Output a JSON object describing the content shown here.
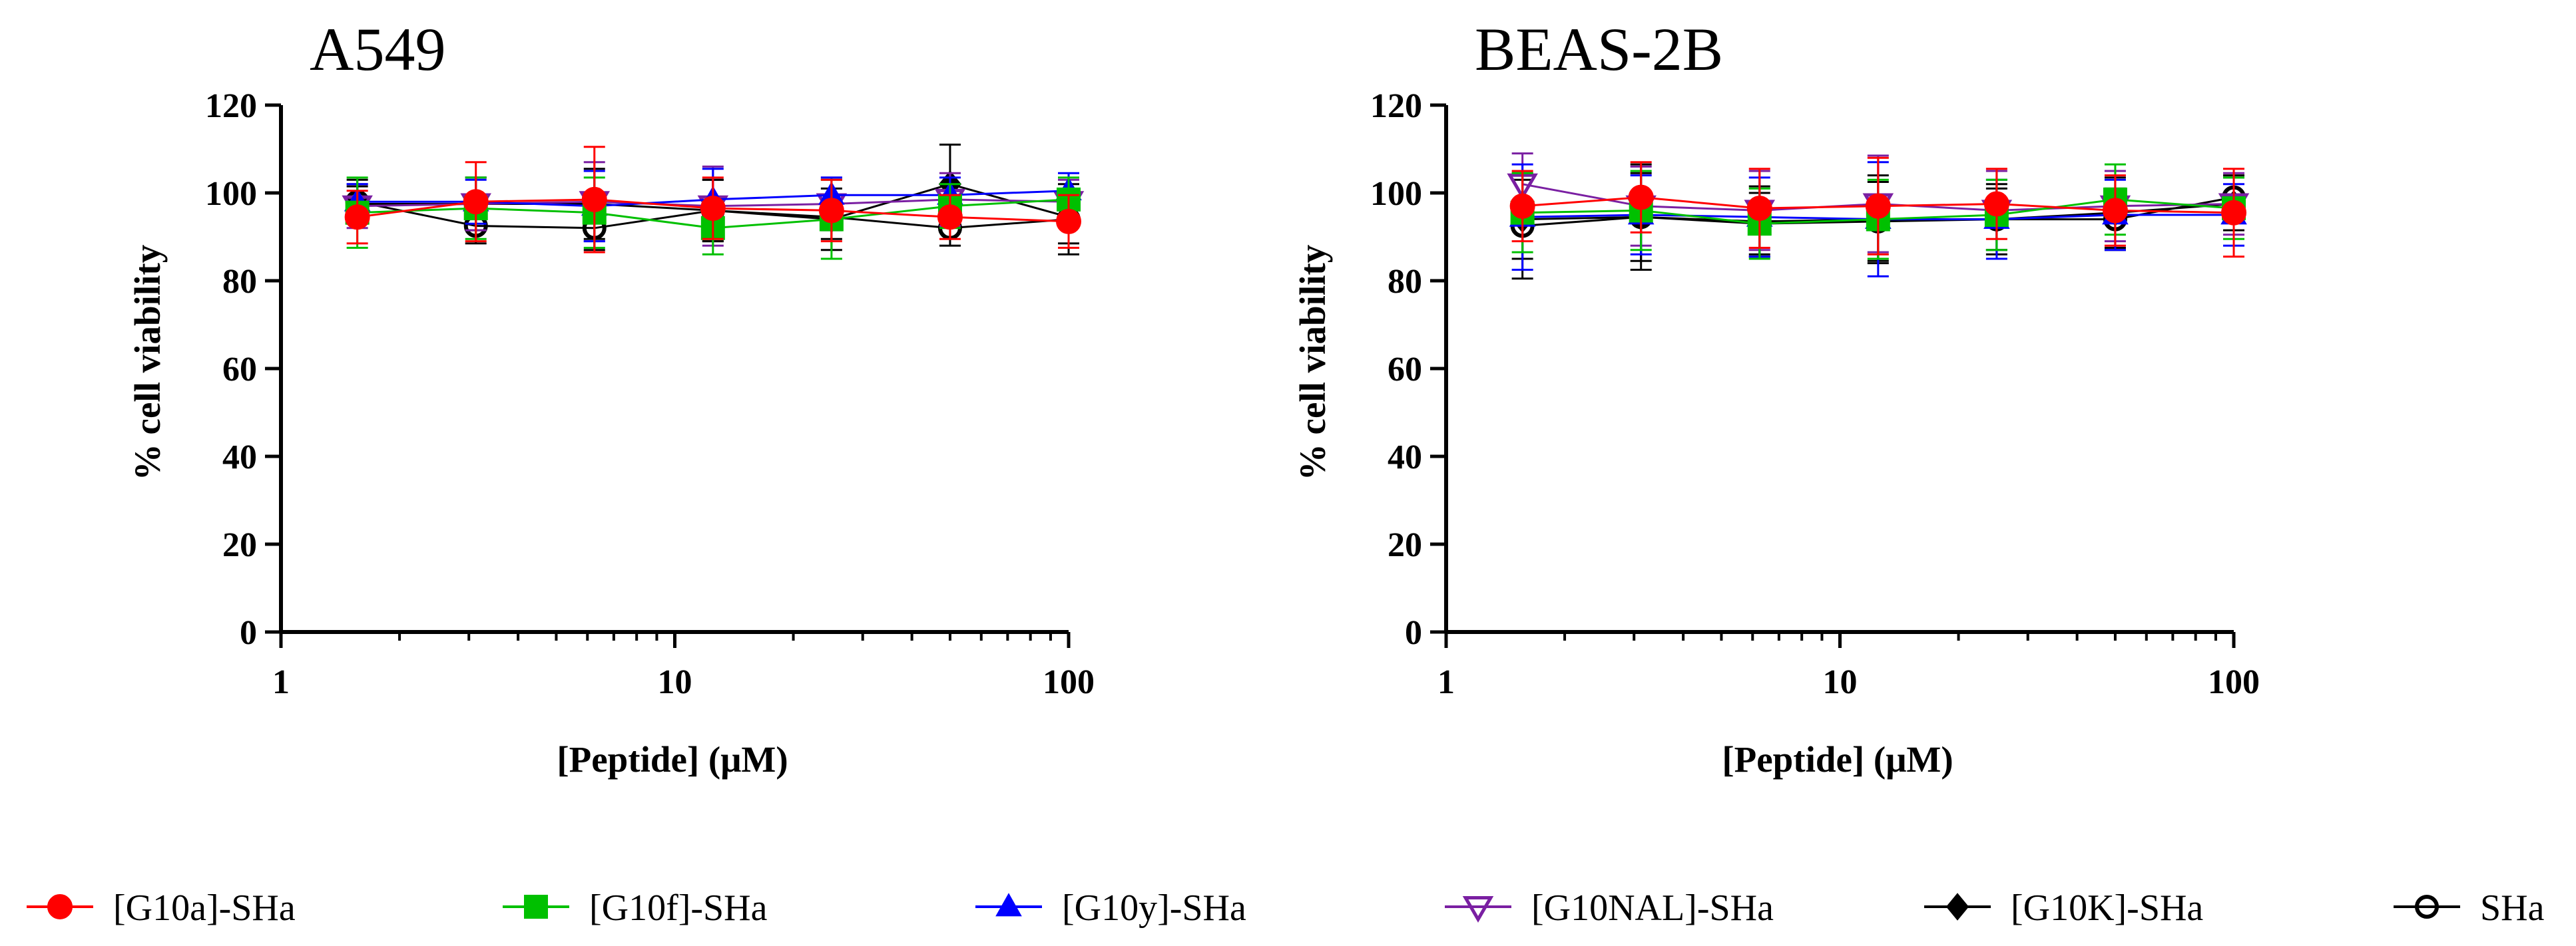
{
  "chart_data": [
    {
      "type": "scatter",
      "title": "A549",
      "xlabel": "[Peptide] (μM)",
      "ylabel": "% cell viability",
      "xscale": "log",
      "xlim": [
        1,
        100
      ],
      "ylim": [
        0,
        120
      ],
      "xticks": [
        "1",
        "10",
        "100"
      ],
      "yticks": [
        "0",
        "20",
        "40",
        "60",
        "80",
        "100",
        "120"
      ],
      "x": [
        1.5625,
        3.125,
        6.25,
        12.5,
        25,
        50,
        100
      ],
      "series": [
        {
          "name": "[G10a]-SHa",
          "values": [
            94.5,
            98.0,
            98.5,
            96.5,
            96.0,
            94.5,
            93.5
          ],
          "errors": [
            6,
            9,
            12,
            7,
            7,
            5,
            6
          ]
        },
        {
          "name": "[G10f]-SHa",
          "values": [
            95.5,
            96.5,
            95.5,
            92.0,
            94.0,
            97.0,
            98.5
          ],
          "errors": [
            8,
            7,
            8,
            6,
            9,
            5,
            5
          ]
        },
        {
          "name": "[G10y]-SHa",
          "values": [
            98.0,
            98.0,
            97.0,
            98.5,
            99.5,
            99.5,
            100.5
          ],
          "errors": [
            4,
            5,
            8,
            7,
            4,
            4,
            4
          ]
        },
        {
          "name": "[G10NAL]-SHa",
          "values": [
            97.0,
            97.5,
            98.0,
            97.0,
            97.5,
            98.5,
            98.0
          ],
          "errors": [
            5,
            6,
            9,
            9,
            6,
            6,
            5
          ]
        },
        {
          "name": "[G10K]-SHa",
          "values": [
            97.5,
            97.5,
            97.5,
            96.0,
            94.0,
            102.0,
            94.5
          ],
          "errors": [
            4,
            6,
            8,
            7,
            7,
            9,
            6
          ]
        },
        {
          "name": "SHa",
          "values": [
            98.0,
            92.5,
            92.0,
            96.0,
            94.5,
            92.0,
            94.0
          ],
          "errors": [
            5,
            4,
            5,
            7,
            5,
            4,
            8
          ]
        }
      ],
      "legend": "bottom"
    },
    {
      "type": "scatter",
      "title": "BEAS-2B",
      "xlabel": "[Peptide] (μM)",
      "ylabel": "% cell viability",
      "xscale": "log",
      "xlim": [
        1,
        100
      ],
      "ylim": [
        0,
        120
      ],
      "xticks": [
        "1",
        "10",
        "100"
      ],
      "yticks": [
        "0",
        "20",
        "40",
        "60",
        "80",
        "100",
        "120"
      ],
      "x": [
        1.5625,
        3.125,
        6.25,
        12.5,
        25,
        50,
        100
      ],
      "series": [
        {
          "name": "[G10a]-SHa",
          "values": [
            97.0,
            99.0,
            96.5,
            97.0,
            97.5,
            96.0,
            95.5
          ],
          "errors": [
            8,
            8,
            9,
            11,
            8,
            8,
            10
          ]
        },
        {
          "name": "[G10f]-SHa",
          "values": [
            95.5,
            96.0,
            93.0,
            94.0,
            95.0,
            98.5,
            96.5
          ],
          "errors": [
            9,
            9,
            8,
            9,
            8,
            8,
            7
          ]
        },
        {
          "name": "[G10y]-SHa",
          "values": [
            94.5,
            95.0,
            94.5,
            94.0,
            94.0,
            95.0,
            95.0
          ],
          "errors": [
            12,
            9,
            9,
            13,
            9,
            8,
            7
          ]
        },
        {
          "name": "[G10NAL]-SHa",
          "values": [
            102.0,
            97.0,
            96.0,
            97.5,
            96.0,
            97.0,
            97.5
          ],
          "errors": [
            7,
            9,
            9,
            11,
            9,
            8,
            7
          ]
        },
        {
          "name": "[G10K]-SHa",
          "values": [
            94.0,
            94.5,
            93.5,
            94.0,
            94.0,
            95.5,
            97.5
          ],
          "errors": [
            9,
            10,
            8,
            10,
            8,
            8,
            6
          ]
        },
        {
          "name": "SHa",
          "values": [
            92.5,
            94.5,
            93.0,
            93.5,
            94.0,
            94.0,
            99.0
          ],
          "errors": [
            12,
            12,
            7,
            9,
            7,
            7,
            5
          ]
        }
      ],
      "legend": "bottom"
    }
  ],
  "legend_entries": [
    {
      "name": "[G10a]-SHa",
      "color": "#ff0000",
      "marker": "circle-filled"
    },
    {
      "name": "[G10f]-SHa",
      "color": "#00c000",
      "marker": "square-filled"
    },
    {
      "name": "[G10y]-SHa",
      "color": "#0000ff",
      "marker": "triangle-up-filled"
    },
    {
      "name": "[G10NAL]-SHa",
      "color": "#7a1fa2",
      "marker": "triangle-down-open"
    },
    {
      "name": "[G10K]-SHa",
      "color": "#000000",
      "marker": "diamond-filled"
    },
    {
      "name": "SHa",
      "color": "#000000",
      "marker": "circle-open"
    }
  ]
}
